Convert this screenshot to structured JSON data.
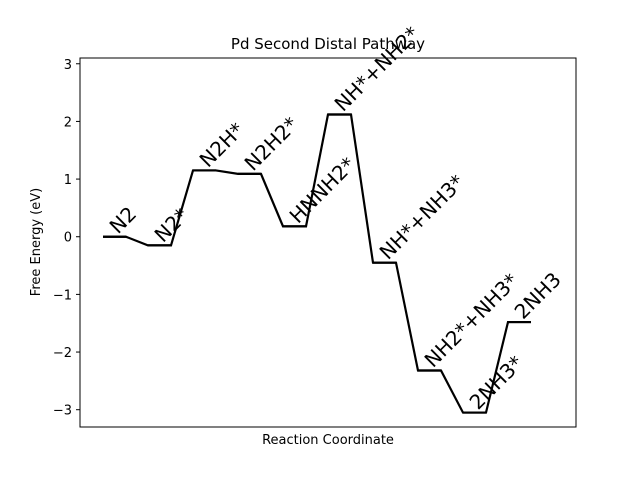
{
  "chart_data": {
    "type": "line",
    "title": "Pd Second Distal Pathway",
    "xlabel": "Reaction Coordinate",
    "ylabel": "Free Energy (eV)",
    "ylim": [
      -3.3,
      3.1
    ],
    "yticks": [
      3,
      2,
      1,
      0,
      -1,
      -2,
      -3
    ],
    "ytick_labels": [
      "3",
      "2",
      "1",
      "0",
      "−1",
      "−2",
      "−3"
    ],
    "grid": false,
    "legend": "none",
    "line_color": "#000000",
    "steps": [
      {
        "label": "N2",
        "energy": 0.0
      },
      {
        "label": "N2*",
        "energy": -0.15
      },
      {
        "label": "N2H*",
        "energy": 1.15
      },
      {
        "label": "N2H2*",
        "energy": 1.09
      },
      {
        "label": "HNNH2*",
        "energy": 0.18
      },
      {
        "label": "NH*+NH2*",
        "energy": 2.12
      },
      {
        "label": "NH*+NH3*",
        "energy": -0.45
      },
      {
        "label": "NH2*+NH3*",
        "energy": -2.32
      },
      {
        "label": "2NH3*",
        "energy": -3.05
      },
      {
        "label": "2NH3",
        "energy": -1.48
      }
    ]
  }
}
